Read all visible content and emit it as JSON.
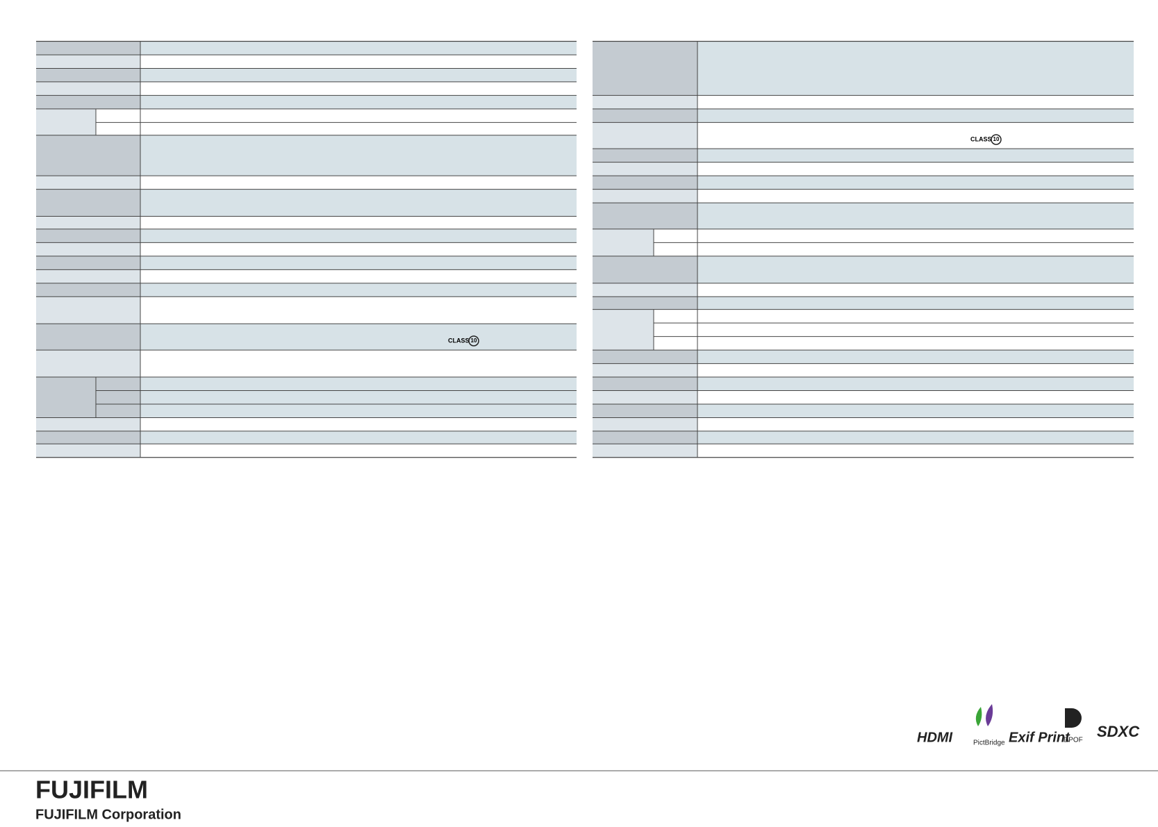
{
  "header": {
    "logo": "FUJIFILM",
    "company": "FUJIFILM Corporation"
  },
  "badges": {
    "class_left": "CLASS",
    "class_left_num": "10",
    "class_right": "CLASS",
    "class_right_num": "10"
  },
  "logos": [
    "HDMI",
    "PictBridge",
    "Exif Print",
    "DPOF",
    "SDXC"
  ]
}
